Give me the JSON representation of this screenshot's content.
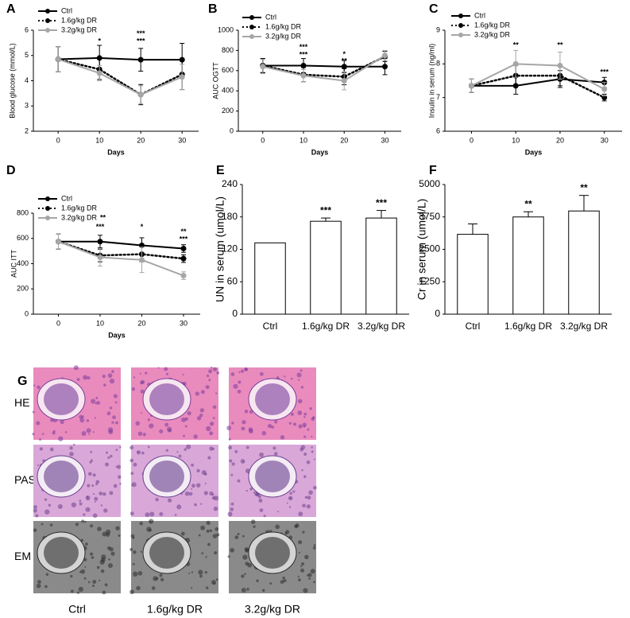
{
  "chart_data": [
    {
      "panel": "A",
      "type": "line",
      "ylabel": "Blood glucose (mmol/L)",
      "xlabel": "Days",
      "x": [
        0,
        10,
        20,
        30
      ],
      "xlim": [
        -6,
        34
      ],
      "xticks": [
        0,
        10,
        20,
        30
      ],
      "ylim": [
        2,
        6
      ],
      "yticks": [
        2,
        3,
        4,
        5,
        6
      ],
      "series": [
        {
          "name": "Ctrl",
          "color": "#000000",
          "style": "solid",
          "values": [
            4.85,
            4.9,
            4.83,
            4.83
          ],
          "errors": [
            0.5,
            0.5,
            0.45,
            0.65
          ]
        },
        {
          "name": "1.6g/kg DR",
          "color": "#000000",
          "style": "dotted",
          "values": [
            4.85,
            4.45,
            3.45,
            4.25
          ],
          "errors": [
            0.5,
            0.4,
            0.4,
            0.6
          ]
        },
        {
          "name": "3.2g/kg DR",
          "color": "#a6a6a6",
          "style": "solid",
          "values": [
            4.85,
            4.3,
            3.45,
            4.15
          ],
          "errors": [
            0.5,
            0.3,
            0.35,
            0.5
          ]
        }
      ],
      "annotations": [
        {
          "x": 10,
          "y": 5.55,
          "text": "*",
          "color": "#a6a6a6"
        },
        {
          "x": 20,
          "y": 5.85,
          "text": "***",
          "color": "#000000"
        },
        {
          "x": 20,
          "y": 5.55,
          "text": "***",
          "color": "#a6a6a6"
        }
      ]
    },
    {
      "panel": "B",
      "type": "line",
      "ylabel": "AUC OGTT",
      "xlabel": "Days",
      "x": [
        0,
        10,
        20,
        30
      ],
      "xlim": [
        -6,
        34
      ],
      "xticks": [
        0,
        10,
        20,
        30
      ],
      "ylim": [
        0,
        1000
      ],
      "yticks": [
        0,
        200,
        400,
        600,
        800,
        1000
      ],
      "series": [
        {
          "name": "Ctrl",
          "color": "#000000",
          "style": "solid",
          "values": [
            650,
            650,
            640,
            640
          ],
          "errors": [
            70,
            70,
            60,
            80
          ]
        },
        {
          "name": "1.6g/kg DR",
          "color": "#000000",
          "style": "dotted",
          "values": [
            650,
            560,
            540,
            740
          ],
          "errors": [
            70,
            70,
            80,
            50
          ]
        },
        {
          "name": "3.2g/kg DR",
          "color": "#a6a6a6",
          "style": "solid",
          "values": [
            640,
            550,
            500,
            750
          ],
          "errors": [
            70,
            60,
            90,
            50
          ]
        }
      ],
      "annotations": [
        {
          "x": 10,
          "y": 830,
          "text": "***",
          "color": "#000000"
        },
        {
          "x": 10,
          "y": 755,
          "text": "***",
          "color": "#a6a6a6"
        },
        {
          "x": 20,
          "y": 760,
          "text": "*",
          "color": "#000000"
        },
        {
          "x": 20,
          "y": 690,
          "text": "**",
          "color": "#a6a6a6"
        }
      ]
    },
    {
      "panel": "C",
      "type": "line",
      "ylabel": "Insulin in serum (ng/ml)",
      "xlabel": "Days",
      "x": [
        0,
        10,
        20,
        30
      ],
      "xlim": [
        -6,
        34
      ],
      "xticks": [
        0,
        10,
        20,
        30
      ],
      "ylim": [
        6,
        9
      ],
      "yticks": [
        6,
        7,
        8,
        9
      ],
      "series": [
        {
          "name": "Ctrl",
          "color": "#000000",
          "style": "solid",
          "values": [
            7.35,
            7.35,
            7.55,
            7.45
          ],
          "errors": [
            0.2,
            0.25,
            0.25,
            0.15
          ]
        },
        {
          "name": "1.6g/kg DR",
          "color": "#000000",
          "style": "dotted",
          "values": [
            7.35,
            7.65,
            7.65,
            7.0
          ],
          "errors": [
            0.2,
            0.3,
            0.3,
            0.1
          ]
        },
        {
          "name": "3.2g/kg DR",
          "color": "#a6a6a6",
          "style": "solid",
          "values": [
            7.35,
            8.0,
            7.95,
            7.25
          ],
          "errors": [
            0.2,
            0.4,
            0.4,
            0.2
          ]
        }
      ],
      "annotations": [
        {
          "x": 10,
          "y": 8.55,
          "text": "**",
          "color": "#a6a6a6"
        },
        {
          "x": 20,
          "y": 8.55,
          "text": "**",
          "color": "#a6a6a6"
        },
        {
          "x": 30,
          "y": 7.75,
          "text": "***",
          "color": "#000000"
        }
      ]
    },
    {
      "panel": "D",
      "type": "line",
      "ylabel": "AUC ITT",
      "xlabel": "Days",
      "legend_note": "**",
      "x": [
        0,
        10,
        20,
        30
      ],
      "xlim": [
        -6,
        34
      ],
      "xticks": [
        0,
        10,
        20,
        30
      ],
      "ylim": [
        0,
        800
      ],
      "yticks": [
        0,
        200,
        400,
        600,
        800
      ],
      "series": [
        {
          "name": "Ctrl",
          "color": "#000000",
          "style": "solid",
          "values": [
            575,
            575,
            545,
            520
          ],
          "errors": [
            60,
            50,
            60,
            30
          ]
        },
        {
          "name": "1.6g/kg DR",
          "color": "#000000",
          "style": "dotted",
          "values": [
            575,
            465,
            475,
            440
          ],
          "errors": [
            60,
            50,
            60,
            30
          ]
        },
        {
          "name": "3.2g/kg DR",
          "color": "#a6a6a6",
          "style": "solid",
          "values": [
            575,
            450,
            430,
            305
          ],
          "errors": [
            60,
            70,
            100,
            30
          ]
        }
      ],
      "annotations": [
        {
          "x": 10,
          "y": 690,
          "text": "***",
          "color": "#a6a6a6"
        },
        {
          "x": 20,
          "y": 690,
          "text": "*",
          "color": "#a6a6a6"
        },
        {
          "x": 30,
          "y": 650,
          "text": "**",
          "color": "#000000"
        },
        {
          "x": 30,
          "y": 590,
          "text": "***",
          "color": "#a6a6a6"
        }
      ]
    },
    {
      "panel": "E",
      "type": "bar",
      "ylabel": "UN in serum (umol/L)",
      "color": "#ffffff",
      "categories": [
        "Ctrl",
        "1.6g/kg DR",
        "3.2g/kg DR"
      ],
      "values": [
        132,
        172,
        178
      ],
      "errors": [
        0,
        6,
        14
      ],
      "significance": [
        null,
        "***",
        "***"
      ],
      "ylim": [
        0,
        240
      ],
      "yticks": [
        0,
        60,
        120,
        180,
        240
      ]
    },
    {
      "panel": "F",
      "type": "bar",
      "ylabel": "Cr in serum (umol/L)",
      "color": "#ffffff",
      "categories": [
        "Ctrl",
        "1.6g/kg DR",
        "3.2g/kg DR"
      ],
      "values": [
        3080,
        3750,
        3980
      ],
      "errors": [
        400,
        200,
        600
      ],
      "significance": [
        null,
        "**",
        "**"
      ],
      "ylim": [
        0,
        5000
      ],
      "yticks": [
        0,
        1250,
        2500,
        3750,
        5000
      ]
    }
  ],
  "panel_g": {
    "panel": "G",
    "rows": [
      "HE",
      "PAS",
      "EM"
    ],
    "columns": [
      "Ctrl",
      "1.6g/kg DR",
      "3.2g/kg DR"
    ]
  }
}
